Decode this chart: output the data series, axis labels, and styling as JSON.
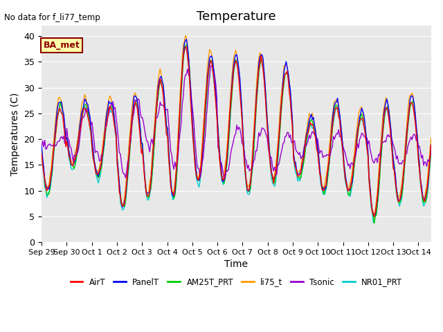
{
  "title": "Temperature",
  "ylabel": "Temperatures (C)",
  "xlabel": "Time",
  "annotation_text": "No data for f_li77_temp",
  "box_label": "BA_met",
  "ylim": [
    0,
    42
  ],
  "yticks": [
    0,
    5,
    10,
    15,
    20,
    25,
    30,
    35,
    40
  ],
  "noise_scale": 0.3,
  "legend": [
    {
      "label": "AirT",
      "color": "#ff0000"
    },
    {
      "label": "PanelT",
      "color": "#0000ff"
    },
    {
      "label": "AM25T_PRT",
      "color": "#00cc00"
    },
    {
      "label": "li75_t",
      "color": "#ff9900"
    },
    {
      "label": "Tsonic",
      "color": "#9900cc"
    },
    {
      "label": "NR01_PRT",
      "color": "#00cccc"
    }
  ],
  "bg_color": "#e8e8e8",
  "title_fontsize": 13,
  "label_fontsize": 10,
  "tick_fontsize": 9,
  "xticklabels": [
    "Sep 29",
    "Sep 30",
    "Oct 1",
    "Oct 2",
    "Oct 3",
    "Oct 4",
    "Oct 5",
    "Oct 6",
    "Oct 7",
    "Oct 8",
    "Oct 9",
    "Oct 10",
    "Oct 11",
    "Oct 12",
    "Oct 13",
    "Oct 14"
  ],
  "n_days": 15.5,
  "day_max": [
    26,
    26,
    26,
    27,
    31,
    38,
    35,
    35,
    35,
    33,
    23,
    26,
    24,
    26,
    27
  ],
  "day_min": [
    10,
    15,
    13,
    7,
    9,
    9,
    12,
    12,
    10,
    12,
    13,
    10,
    10,
    5,
    8
  ],
  "tsonic_max": [
    20,
    26,
    27,
    28,
    27,
    33,
    34,
    22,
    22,
    21,
    21,
    21,
    21,
    21,
    21
  ],
  "tsonic_min": [
    18,
    16,
    16,
    13,
    19,
    14,
    13,
    13,
    14,
    14,
    17,
    16,
    15,
    16,
    15
  ]
}
